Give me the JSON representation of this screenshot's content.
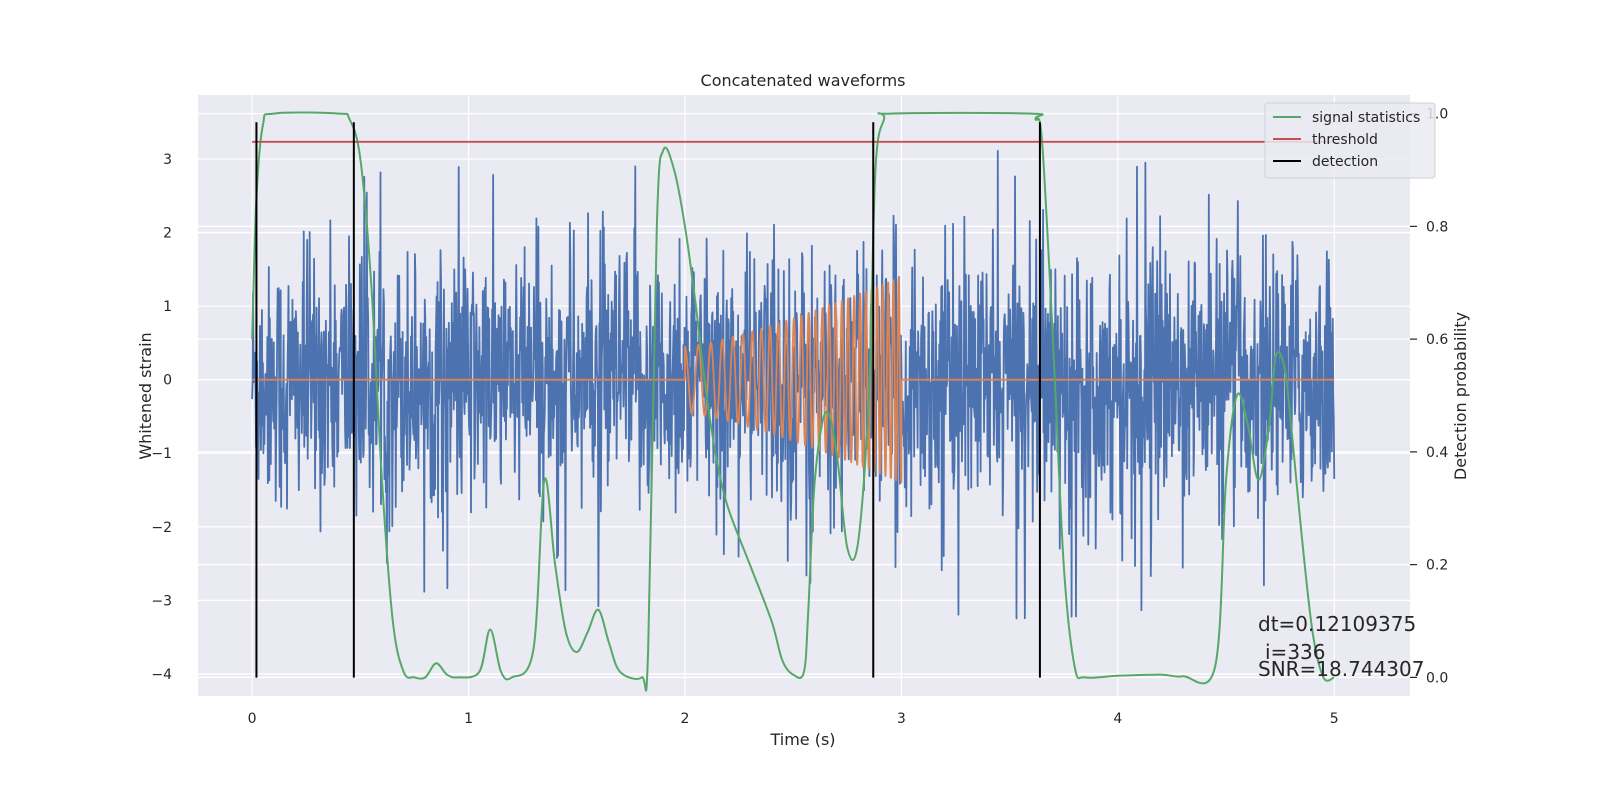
{
  "chart_data": {
    "type": "line",
    "title": "Concatenated waveforms",
    "xlabel": "Time (s)",
    "ylabel": "Whitened strain",
    "y2label": "Detection probability",
    "xlim": [
      -0.25,
      5.35
    ],
    "ylim": [
      -4.3,
      3.87
    ],
    "y2lim": [
      -0.033,
      1.033
    ],
    "xticks": [
      0,
      1,
      2,
      3,
      4,
      5
    ],
    "yticks": [
      -4,
      -3,
      -2,
      -1,
      0,
      1,
      2,
      3
    ],
    "y2ticks": [
      0.0,
      0.2,
      0.4,
      0.6,
      0.8,
      1.0
    ],
    "y2ticklabels": [
      "0.0",
      "0.2",
      "0.4",
      "0.6",
      "0.8",
      "1.0"
    ],
    "grid": true,
    "legend_position": "top-right",
    "series": [
      {
        "role": "noisy-strain",
        "axis": "left",
        "color": "#4c72b0",
        "x_range": [
          0,
          5
        ],
        "envelope": [
          [
            0,
            1.3,
            -1.3
          ],
          [
            0.5,
            2.8,
            -2.9
          ],
          [
            1,
            2.9,
            -3.2
          ],
          [
            2,
            2.9,
            -3.0
          ],
          [
            3,
            3.2,
            -3.3
          ],
          [
            4,
            3.0,
            -3.2
          ],
          [
            5,
            2.6,
            -2.6
          ]
        ]
      },
      {
        "role": "injected-chirp",
        "axis": "left",
        "color": "#dd8452",
        "x_range": [
          0,
          5
        ],
        "chirp_start": 2.0,
        "chirp_end": 3.0,
        "amp_start": 0.45,
        "amp_end": 1.4,
        "freq_start": 15,
        "freq_end": 42
      },
      {
        "name": "signal statistics",
        "axis": "right",
        "color": "#55a868",
        "points": [
          [
            0,
            0.6
          ],
          [
            0.02,
            0.85
          ],
          [
            0.05,
            0.98
          ],
          [
            0.1,
            1.0
          ],
          [
            0.4,
            1.0
          ],
          [
            0.45,
            0.99
          ],
          [
            0.5,
            0.92
          ],
          [
            0.55,
            0.7
          ],
          [
            0.6,
            0.35
          ],
          [
            0.65,
            0.1
          ],
          [
            0.7,
            0.01
          ],
          [
            0.75,
            0.0
          ],
          [
            0.8,
            0.0
          ],
          [
            0.85,
            0.025
          ],
          [
            0.9,
            0.005
          ],
          [
            0.95,
            0.0
          ],
          [
            1.05,
            0.01
          ],
          [
            1.1,
            0.085
          ],
          [
            1.15,
            0.01
          ],
          [
            1.2,
            0.0
          ],
          [
            1.3,
            0.05
          ],
          [
            1.35,
            0.35
          ],
          [
            1.4,
            0.2
          ],
          [
            1.45,
            0.08
          ],
          [
            1.5,
            0.045
          ],
          [
            1.55,
            0.08
          ],
          [
            1.6,
            0.12
          ],
          [
            1.65,
            0.06
          ],
          [
            1.7,
            0.01
          ],
          [
            1.8,
            0.0
          ],
          [
            1.83,
            0.05
          ],
          [
            1.87,
            0.8
          ],
          [
            1.9,
            0.935
          ],
          [
            1.95,
            0.9
          ],
          [
            2.0,
            0.8
          ],
          [
            2.05,
            0.66
          ],
          [
            2.1,
            0.5
          ],
          [
            2.15,
            0.38
          ],
          [
            2.2,
            0.3
          ],
          [
            2.3,
            0.2
          ],
          [
            2.4,
            0.1
          ],
          [
            2.45,
            0.03
          ],
          [
            2.5,
            0.005
          ],
          [
            2.55,
            0.01
          ],
          [
            2.57,
            0.12
          ],
          [
            2.6,
            0.35
          ],
          [
            2.65,
            0.47
          ],
          [
            2.7,
            0.4
          ],
          [
            2.75,
            0.23
          ],
          [
            2.8,
            0.24
          ],
          [
            2.85,
            0.5
          ],
          [
            2.88,
            0.9
          ],
          [
            2.92,
            0.99
          ],
          [
            2.95,
            1.0
          ],
          [
            3.6,
            1.0
          ],
          [
            3.62,
            0.99
          ],
          [
            3.65,
            0.95
          ],
          [
            3.7,
            0.6
          ],
          [
            3.75,
            0.2
          ],
          [
            3.8,
            0.02
          ],
          [
            3.85,
            0.0
          ],
          [
            4.0,
            0.003
          ],
          [
            4.2,
            0.005
          ],
          [
            4.3,
            0.002
          ],
          [
            4.45,
            0.02
          ],
          [
            4.5,
            0.35
          ],
          [
            4.55,
            0.5
          ],
          [
            4.6,
            0.45
          ],
          [
            4.65,
            0.35
          ],
          [
            4.7,
            0.45
          ],
          [
            4.73,
            0.57
          ],
          [
            4.77,
            0.55
          ],
          [
            4.8,
            0.45
          ],
          [
            4.85,
            0.25
          ],
          [
            4.9,
            0.08
          ],
          [
            4.95,
            0.0
          ],
          [
            5.0,
            0.0
          ]
        ]
      },
      {
        "name": "threshold",
        "axis": "right",
        "color": "#c44e52",
        "x": [
          0,
          5
        ],
        "value": 0.95
      },
      {
        "name": "detection",
        "axis": "left",
        "color": "#000000",
        "x": [
          0.02,
          0.47,
          2.87,
          3.64
        ],
        "y_range": [
          -4.05,
          3.5
        ]
      }
    ],
    "legend": [
      "signal statistics",
      "threshold",
      "detection"
    ],
    "annotation": [
      "dt=0.12109375",
      "i=336",
      "SNR=18.744307"
    ]
  }
}
